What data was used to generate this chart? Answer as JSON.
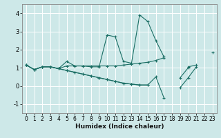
{
  "xlabel": "Humidex (Indice chaleur)",
  "xlim": [
    -0.5,
    23.5
  ],
  "ylim": [
    -1.5,
    4.5
  ],
  "yticks": [
    -1,
    0,
    1,
    2,
    3,
    4
  ],
  "xticks": [
    0,
    1,
    2,
    3,
    4,
    5,
    6,
    7,
    8,
    9,
    10,
    11,
    12,
    13,
    14,
    15,
    16,
    17,
    18,
    19,
    20,
    21,
    22,
    23
  ],
  "background_color": "#cde8e8",
  "grid_color": "#ffffff",
  "line_color": "#1a6e64",
  "series": [
    [
      1.15,
      0.9,
      1.05,
      1.05,
      0.95,
      1.35,
      1.1,
      1.1,
      1.05,
      1.05,
      2.8,
      2.7,
      1.35,
      1.25,
      3.9,
      3.55,
      2.5,
      1.6,
      null,
      null,
      1.05,
      1.15,
      null,
      null
    ],
    [
      1.15,
      0.9,
      1.05,
      1.05,
      0.95,
      1.1,
      1.1,
      1.1,
      1.1,
      1.1,
      1.1,
      1.1,
      1.15,
      1.2,
      1.25,
      1.3,
      1.4,
      1.55,
      null,
      null,
      null,
      null,
      null,
      1.85
    ],
    [
      1.15,
      0.9,
      1.05,
      1.05,
      0.95,
      0.85,
      0.75,
      0.65,
      0.55,
      0.45,
      0.35,
      0.25,
      0.15,
      0.1,
      0.05,
      0.05,
      0.5,
      -0.65,
      null,
      -0.1,
      0.45,
      1.05,
      null,
      null
    ],
    [
      1.15,
      0.9,
      1.05,
      1.05,
      0.95,
      0.85,
      0.75,
      0.65,
      0.55,
      0.45,
      0.35,
      0.25,
      0.15,
      0.1,
      0.05,
      0.05,
      null,
      null,
      null,
      0.45,
      1.0,
      null,
      null,
      null
    ]
  ]
}
